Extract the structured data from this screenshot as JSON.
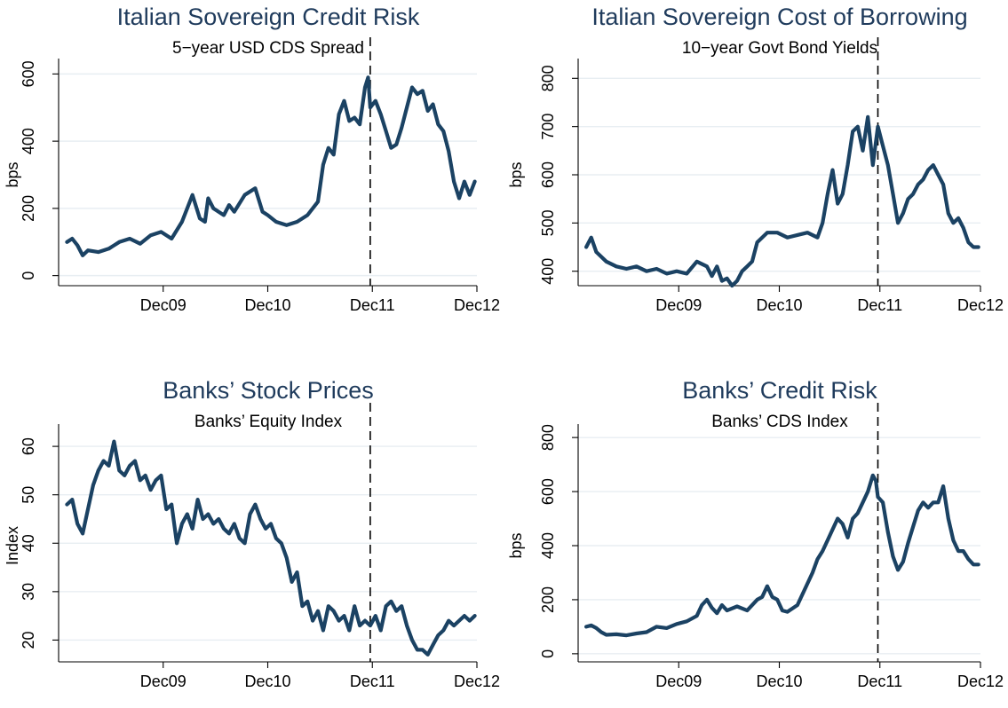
{
  "colors": {
    "title": "#1f3b5c",
    "series": "#1b4263",
    "grid": "#e8eef2"
  },
  "chart_data": [
    {
      "type": "line",
      "title": "Italian Sovereign Credit Risk",
      "subtitle": "5−year USD CDS Spread",
      "xlabel": "",
      "ylabel": "bps",
      "x_ticks": [
        "Dec09",
        "Dec10",
        "Dec11",
        "Dec12"
      ],
      "x_tick_values": [
        2009.92,
        2010.92,
        2011.92,
        2012.92
      ],
      "xlim": [
        2008.92,
        2012.92
      ],
      "y_ticks": [
        0,
        200,
        400,
        600
      ],
      "ylim": [
        -30,
        630
      ],
      "event_line_x": 2011.9,
      "grid": true,
      "series": [
        {
          "x": [
            2009.0,
            2009.05,
            2009.1,
            2009.15,
            2009.2,
            2009.3,
            2009.4,
            2009.5,
            2009.6,
            2009.7,
            2009.8,
            2009.9,
            2010.0,
            2010.1,
            2010.15,
            2010.2,
            2010.27,
            2010.32,
            2010.35,
            2010.4,
            2010.5,
            2010.55,
            2010.6,
            2010.7,
            2010.8,
            2010.87,
            2010.92,
            2011.0,
            2011.1,
            2011.2,
            2011.3,
            2011.4,
            2011.45,
            2011.5,
            2011.55,
            2011.6,
            2011.65,
            2011.7,
            2011.75,
            2011.8,
            2011.85,
            2011.88,
            2011.9,
            2011.95,
            2012.0,
            2012.05,
            2012.1,
            2012.15,
            2012.2,
            2012.25,
            2012.3,
            2012.35,
            2012.4,
            2012.45,
            2012.5,
            2012.55,
            2012.6,
            2012.65,
            2012.7,
            2012.75,
            2012.8,
            2012.85,
            2012.9
          ],
          "y": [
            100,
            110,
            90,
            60,
            75,
            70,
            80,
            100,
            110,
            95,
            120,
            130,
            110,
            160,
            200,
            240,
            170,
            160,
            230,
            200,
            180,
            210,
            190,
            240,
            260,
            190,
            180,
            160,
            150,
            160,
            180,
            220,
            330,
            380,
            360,
            480,
            520,
            460,
            470,
            450,
            560,
            590,
            500,
            520,
            480,
            430,
            380,
            390,
            440,
            500,
            560,
            540,
            550,
            490,
            510,
            450,
            430,
            370,
            280,
            230,
            280,
            240,
            280
          ]
        }
      ]
    },
    {
      "type": "line",
      "title": "Italian Sovereign Cost of Borrowing",
      "subtitle": "10−year Govt Bond Yields",
      "xlabel": "",
      "ylabel": "bps",
      "x_ticks": [
        "Dec09",
        "Dec10",
        "Dec11",
        "Dec12"
      ],
      "x_tick_values": [
        2009.92,
        2010.92,
        2011.92,
        2012.92
      ],
      "xlim": [
        2008.92,
        2012.92
      ],
      "y_ticks": [
        400,
        500,
        600,
        700,
        800
      ],
      "ylim": [
        370,
        830
      ],
      "event_line_x": 2011.9,
      "grid": true,
      "series": [
        {
          "x": [
            2009.0,
            2009.05,
            2009.1,
            2009.2,
            2009.3,
            2009.4,
            2009.5,
            2009.6,
            2009.7,
            2009.8,
            2009.9,
            2010.0,
            2010.1,
            2010.2,
            2010.25,
            2010.3,
            2010.35,
            2010.4,
            2010.45,
            2010.5,
            2010.55,
            2010.6,
            2010.65,
            2010.7,
            2010.75,
            2010.8,
            2010.9,
            2011.0,
            2011.1,
            2011.2,
            2011.3,
            2011.35,
            2011.4,
            2011.45,
            2011.5,
            2011.55,
            2011.6,
            2011.65,
            2011.7,
            2011.75,
            2011.8,
            2011.85,
            2011.9,
            2011.95,
            2012.0,
            2012.05,
            2012.1,
            2012.15,
            2012.2,
            2012.25,
            2012.3,
            2012.35,
            2012.4,
            2012.45,
            2012.5,
            2012.55,
            2012.6,
            2012.65,
            2012.7,
            2012.75,
            2012.8,
            2012.85,
            2012.9
          ],
          "y": [
            450,
            470,
            440,
            420,
            410,
            405,
            410,
            400,
            405,
            395,
            400,
            395,
            420,
            410,
            390,
            410,
            380,
            385,
            370,
            380,
            400,
            410,
            420,
            460,
            470,
            480,
            480,
            470,
            475,
            480,
            470,
            500,
            560,
            610,
            540,
            560,
            620,
            690,
            700,
            650,
            720,
            620,
            700,
            660,
            620,
            560,
            500,
            520,
            550,
            560,
            580,
            590,
            610,
            620,
            600,
            580,
            520,
            500,
            510,
            490,
            460,
            450,
            450
          ]
        }
      ]
    },
    {
      "type": "line",
      "title": "Banks’ Stock Prices",
      "subtitle": "Banks’ Equity Index",
      "xlabel": "",
      "ylabel": "Index",
      "x_ticks": [
        "Dec09",
        "Dec10",
        "Dec11",
        "Dec12"
      ],
      "x_tick_values": [
        2009.92,
        2010.92,
        2011.92,
        2012.92
      ],
      "xlim": [
        2008.92,
        2012.92
      ],
      "y_ticks": [
        20,
        30,
        40,
        50,
        60
      ],
      "ylim": [
        15.5,
        63.5
      ],
      "event_line_x": 2011.9,
      "grid": true,
      "series": [
        {
          "x": [
            2009.0,
            2009.05,
            2009.1,
            2009.15,
            2009.2,
            2009.25,
            2009.3,
            2009.35,
            2009.4,
            2009.45,
            2009.5,
            2009.55,
            2009.6,
            2009.65,
            2009.7,
            2009.75,
            2009.8,
            2009.85,
            2009.9,
            2009.95,
            2010.0,
            2010.05,
            2010.1,
            2010.15,
            2010.2,
            2010.25,
            2010.3,
            2010.35,
            2010.4,
            2010.45,
            2010.5,
            2010.55,
            2010.6,
            2010.65,
            2010.7,
            2010.75,
            2010.8,
            2010.85,
            2010.9,
            2010.95,
            2011.0,
            2011.05,
            2011.1,
            2011.15,
            2011.2,
            2011.25,
            2011.3,
            2011.35,
            2011.4,
            2011.45,
            2011.5,
            2011.55,
            2011.6,
            2011.65,
            2011.7,
            2011.75,
            2011.8,
            2011.85,
            2011.9,
            2011.95,
            2012.0,
            2012.05,
            2012.1,
            2012.15,
            2012.2,
            2012.25,
            2012.3,
            2012.35,
            2012.4,
            2012.45,
            2012.5,
            2012.55,
            2012.6,
            2012.65,
            2012.7,
            2012.75,
            2012.8,
            2012.85,
            2012.9
          ],
          "y": [
            48,
            49,
            44,
            42,
            47,
            52,
            55,
            57,
            56,
            61,
            55,
            54,
            56,
            57,
            53,
            54,
            51,
            53,
            54,
            47,
            48,
            40,
            44,
            46,
            43,
            49,
            45,
            46,
            44,
            45,
            43,
            42,
            44,
            41,
            40,
            46,
            48,
            45,
            43,
            44,
            41,
            40,
            37,
            32,
            34,
            27,
            28,
            24,
            26,
            22,
            27,
            26,
            24,
            25,
            22,
            27,
            23,
            24,
            23,
            25,
            22,
            27,
            28,
            26,
            27,
            23,
            20,
            18,
            18,
            17,
            19,
            21,
            22,
            24,
            23,
            24,
            25,
            24,
            25
          ]
        }
      ]
    },
    {
      "type": "line",
      "title": "Banks’ Credit Risk",
      "subtitle": "Banks’ CDS Index",
      "xlabel": "",
      "ylabel": "bps",
      "x_ticks": [
        "Dec09",
        "Dec10",
        "Dec11",
        "Dec12"
      ],
      "x_tick_values": [
        2009.92,
        2010.92,
        2011.92,
        2012.92
      ],
      "xlim": [
        2008.92,
        2012.92
      ],
      "y_ticks": [
        0,
        200,
        400,
        600,
        800
      ],
      "ylim": [
        -30,
        830
      ],
      "event_line_x": 2011.9,
      "grid": true,
      "series": [
        {
          "x": [
            2009.0,
            2009.05,
            2009.1,
            2009.15,
            2009.2,
            2009.3,
            2009.4,
            2009.5,
            2009.6,
            2009.7,
            2009.8,
            2009.9,
            2010.0,
            2010.1,
            2010.15,
            2010.2,
            2010.25,
            2010.3,
            2010.35,
            2010.4,
            2010.5,
            2010.6,
            2010.7,
            2010.75,
            2010.8,
            2010.85,
            2010.9,
            2010.95,
            2011.0,
            2011.1,
            2011.2,
            2011.25,
            2011.3,
            2011.35,
            2011.4,
            2011.45,
            2011.5,
            2011.55,
            2011.6,
            2011.65,
            2011.7,
            2011.75,
            2011.8,
            2011.85,
            2011.88,
            2011.9,
            2011.95,
            2012.0,
            2012.05,
            2012.1,
            2012.15,
            2012.2,
            2012.25,
            2012.3,
            2012.35,
            2012.4,
            2012.45,
            2012.5,
            2012.55,
            2012.6,
            2012.65,
            2012.7,
            2012.75,
            2012.8,
            2012.85,
            2012.9
          ],
          "y": [
            100,
            105,
            95,
            80,
            70,
            72,
            68,
            75,
            80,
            100,
            95,
            110,
            120,
            140,
            180,
            200,
            170,
            150,
            180,
            160,
            175,
            160,
            200,
            210,
            250,
            210,
            200,
            160,
            155,
            180,
            260,
            300,
            350,
            380,
            420,
            460,
            500,
            480,
            430,
            500,
            520,
            560,
            600,
            660,
            640,
            580,
            560,
            450,
            360,
            310,
            340,
            410,
            470,
            530,
            560,
            540,
            560,
            560,
            620,
            500,
            420,
            380,
            380,
            350,
            330,
            330
          ]
        }
      ]
    }
  ]
}
